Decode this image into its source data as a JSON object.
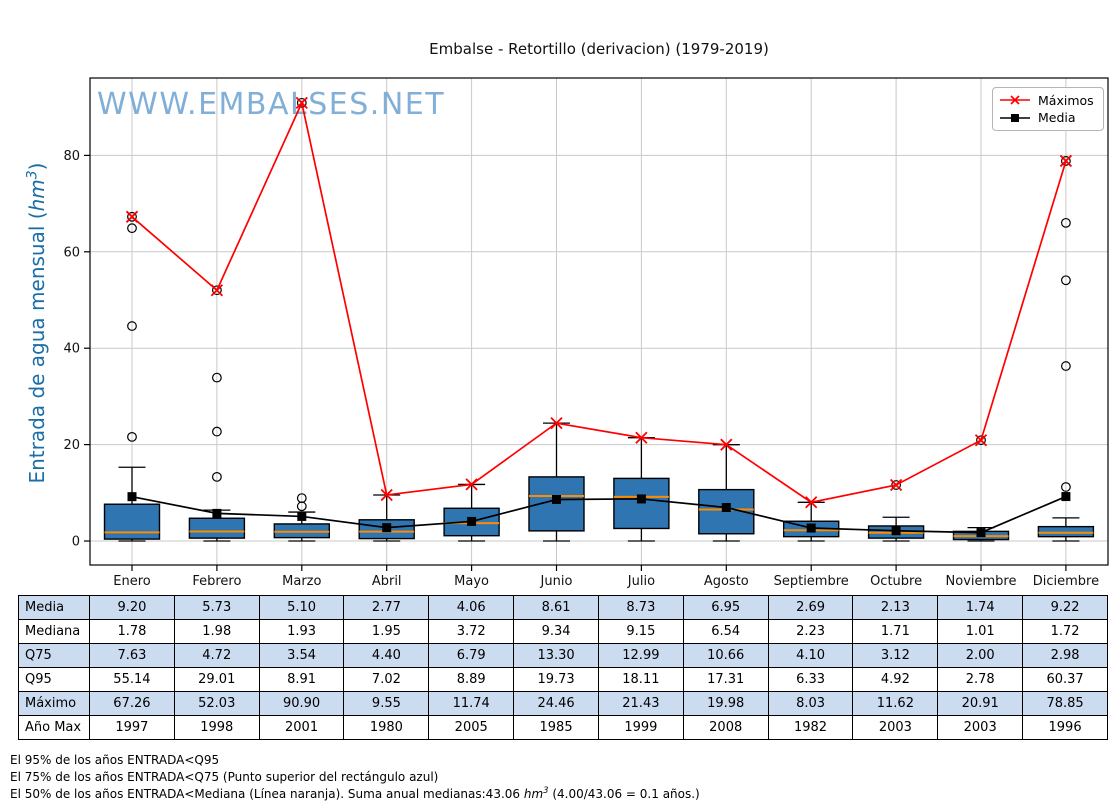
{
  "title": "Embalse - Retortillo (derivacion) (1979-2019)",
  "watermark": "WWW.EMBALSES.NET",
  "watermark_color": "#74a7d3",
  "y_axis": {
    "label_prefix": "Entrada de agua mensual (",
    "label_math": "hm",
    "label_sup": "3",
    "label_suffix": ")",
    "color": "#1a6fa8"
  },
  "legend": {
    "items": [
      {
        "label": "Máximos"
      },
      {
        "label": "Media"
      }
    ]
  },
  "chart_data": {
    "type": "boxplot-with-lines",
    "categories": [
      "Enero",
      "Febrero",
      "Marzo",
      "Abril",
      "Mayo",
      "Junio",
      "Julio",
      "Agosto",
      "Septiembre",
      "Octubre",
      "Noviembre",
      "Diciembre"
    ],
    "yticks": [
      0,
      20,
      40,
      60,
      80
    ],
    "ylim": [
      -5,
      96
    ],
    "grid": true,
    "grid_color": "#c9c9c9",
    "legend_position": "upper right",
    "series": [
      {
        "name": "Máximos",
        "type": "line",
        "color": "#ff0000",
        "marker": "x",
        "values": [
          67.26,
          52.03,
          90.9,
          9.55,
          11.74,
          24.46,
          21.43,
          19.98,
          8.03,
          11.62,
          20.91,
          78.85
        ]
      },
      {
        "name": "Media",
        "type": "line",
        "color": "#000000",
        "marker": "square",
        "values": [
          9.2,
          5.73,
          5.1,
          2.77,
          4.06,
          8.61,
          8.73,
          6.95,
          2.69,
          2.13,
          1.74,
          9.22
        ]
      }
    ],
    "boxplot": {
      "fill": "#2e75b1",
      "edge": "#000000",
      "median_color": "#ff8c00",
      "outlier_color": "#000000",
      "q1": [
        0.4,
        0.6,
        0.7,
        0.5,
        1.1,
        2.1,
        2.6,
        1.5,
        0.9,
        0.6,
        0.3,
        0.9
      ],
      "median": [
        1.78,
        1.98,
        1.93,
        1.95,
        3.72,
        9.34,
        9.15,
        6.54,
        2.23,
        1.71,
        1.01,
        1.72
      ],
      "q3": [
        7.63,
        4.72,
        3.54,
        4.4,
        6.79,
        13.3,
        12.99,
        10.66,
        4.1,
        3.12,
        2.0,
        2.98
      ],
      "whisker_low": [
        0,
        0,
        0,
        0,
        0,
        0,
        0,
        0,
        0,
        0,
        0,
        0
      ],
      "whisker_high": [
        15.3,
        6.4,
        6.0,
        9.55,
        11.74,
        24.46,
        21.43,
        19.98,
        8.03,
        4.92,
        2.78,
        4.8
      ],
      "outliers": [
        [
          21.6,
          44.6,
          64.9,
          67.26
        ],
        [
          13.3,
          22.7,
          33.9,
          52.03
        ],
        [
          7.2,
          8.9,
          90.9
        ],
        [],
        [],
        [],
        [],
        [],
        [],
        [
          11.62
        ],
        [
          20.91
        ],
        [
          11.2,
          36.3,
          54.1,
          66.0,
          78.85
        ]
      ]
    }
  },
  "table": {
    "stripe_color": "#cbdcf1",
    "row_headers": [
      "Media",
      "Mediana",
      "Q75",
      "Q95",
      "Máximo",
      "Año Max"
    ],
    "rows": [
      [
        "9.20",
        "5.73",
        "5.10",
        "2.77",
        "4.06",
        "8.61",
        "8.73",
        "6.95",
        "2.69",
        "2.13",
        "1.74",
        "9.22"
      ],
      [
        "1.78",
        "1.98",
        "1.93",
        "1.95",
        "3.72",
        "9.34",
        "9.15",
        "6.54",
        "2.23",
        "1.71",
        "1.01",
        "1.72"
      ],
      [
        "7.63",
        "4.72",
        "3.54",
        "4.40",
        "6.79",
        "13.30",
        "12.99",
        "10.66",
        "4.10",
        "3.12",
        "2.00",
        "2.98"
      ],
      [
        "55.14",
        "29.01",
        "8.91",
        "7.02",
        "8.89",
        "19.73",
        "18.11",
        "17.31",
        "6.33",
        "4.92",
        "2.78",
        "60.37"
      ],
      [
        "67.26",
        "52.03",
        "90.90",
        "9.55",
        "11.74",
        "24.46",
        "21.43",
        "19.98",
        "8.03",
        "11.62",
        "20.91",
        "78.85"
      ],
      [
        "1997",
        "1998",
        "2001",
        "1980",
        "2005",
        "1985",
        "1999",
        "2008",
        "1982",
        "2003",
        "2003",
        "1996"
      ]
    ]
  },
  "footnotes": {
    "line1": "El 95% de los años ENTRADA<Q95",
    "line2": "El 75% de los años ENTRADA<Q75 (Punto superior del rectángulo azul)",
    "line3_pre": "El 50% de los años ENTRADA<Mediana (Línea naranja). Suma anual medianas:43.06 ",
    "line3_math": "hm",
    "line3_sup": "3",
    "line3_post": " (4.00/43.06 = 0.1 años.)"
  }
}
